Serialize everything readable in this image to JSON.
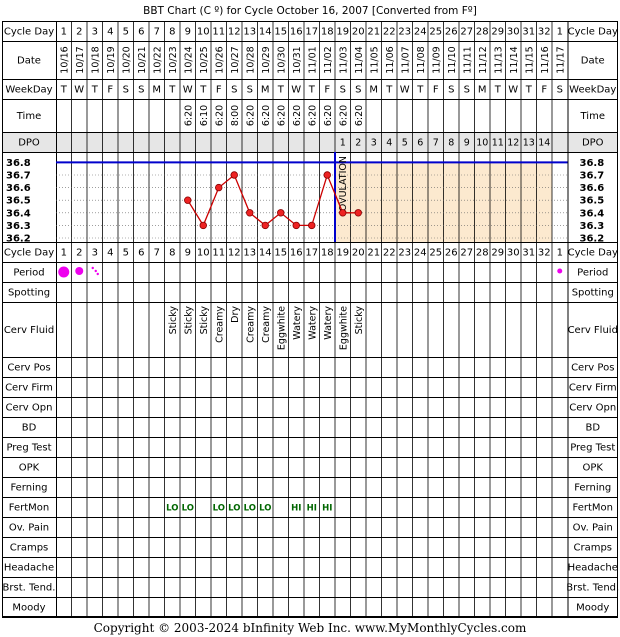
{
  "title": "BBT Chart (C º) for Cycle October 16, 2007  [Converted from Fº]",
  "row_labels": {
    "cycle_day": "Cycle Day",
    "date": "Date",
    "weekday": "WeekDay",
    "time": "Time",
    "dpo": "DPO",
    "period": "Period",
    "spotting": "Spotting",
    "cerv_fluid": "Cerv Fluid",
    "cerv_pos": "Cerv Pos",
    "cerv_firm": "Cerv Firm",
    "cerv_opn": "Cerv Opn",
    "bd": "BD",
    "preg_test": "Preg Test",
    "opk": "OPK",
    "ferning": "Ferning",
    "fertmon": "FertMon",
    "ov_pain": "Ov. Pain",
    "cramps": "Cramps",
    "headache": "Headache",
    "brst_tend": "Brst. Tend.",
    "moody": "Moody"
  },
  "columns": [
    {
      "day": "1",
      "date": "10/16",
      "weekday": "T",
      "time": "",
      "dpo": "",
      "fluid": "",
      "fertmon": ""
    },
    {
      "day": "2",
      "date": "10/17",
      "weekday": "W",
      "time": "",
      "dpo": "",
      "fluid": "",
      "fertmon": ""
    },
    {
      "day": "3",
      "date": "10/18",
      "weekday": "T",
      "time": "",
      "dpo": "",
      "fluid": "",
      "fertmon": ""
    },
    {
      "day": "4",
      "date": "10/19",
      "weekday": "F",
      "time": "",
      "dpo": "",
      "fluid": "",
      "fertmon": ""
    },
    {
      "day": "5",
      "date": "10/20",
      "weekday": "S",
      "time": "",
      "dpo": "",
      "fluid": "",
      "fertmon": ""
    },
    {
      "day": "6",
      "date": "10/21",
      "weekday": "S",
      "time": "",
      "dpo": "",
      "fluid": "",
      "fertmon": ""
    },
    {
      "day": "7",
      "date": "10/22",
      "weekday": "M",
      "time": "",
      "dpo": "",
      "fluid": "",
      "fertmon": ""
    },
    {
      "day": "8",
      "date": "10/23",
      "weekday": "T",
      "time": "",
      "dpo": "",
      "fluid": "Sticky",
      "fertmon": "LO"
    },
    {
      "day": "9",
      "date": "10/24",
      "weekday": "W",
      "time": "6:20",
      "dpo": "",
      "fluid": "Sticky",
      "fertmon": "LO"
    },
    {
      "day": "10",
      "date": "10/25",
      "weekday": "T",
      "time": "6:10",
      "dpo": "",
      "fluid": "Sticky",
      "fertmon": ""
    },
    {
      "day": "11",
      "date": "10/26",
      "weekday": "F",
      "time": "6:20",
      "dpo": "",
      "fluid": "Creamy",
      "fertmon": "LO"
    },
    {
      "day": "12",
      "date": "10/27",
      "weekday": "S",
      "time": "8:00",
      "dpo": "",
      "fluid": "Dry",
      "fertmon": "LO"
    },
    {
      "day": "13",
      "date": "10/28",
      "weekday": "S",
      "time": "6:20",
      "dpo": "",
      "fluid": "Creamy",
      "fertmon": "LO"
    },
    {
      "day": "14",
      "date": "10/29",
      "weekday": "M",
      "time": "6:20",
      "dpo": "",
      "fluid": "Creamy",
      "fertmon": "LO"
    },
    {
      "day": "15",
      "date": "10/30",
      "weekday": "T",
      "time": "6:20",
      "dpo": "",
      "fluid": "Eggwhite",
      "fertmon": ""
    },
    {
      "day": "16",
      "date": "10/31",
      "weekday": "W",
      "time": "6:20",
      "dpo": "",
      "fluid": "Watery",
      "fertmon": "HI"
    },
    {
      "day": "17",
      "date": "11/01",
      "weekday": "T",
      "time": "6:20",
      "dpo": "",
      "fluid": "Watery",
      "fertmon": "HI"
    },
    {
      "day": "18",
      "date": "11/02",
      "weekday": "F",
      "time": "6:20",
      "dpo": "",
      "fluid": "Watery",
      "fertmon": "HI"
    },
    {
      "day": "19",
      "date": "11/03",
      "weekday": "S",
      "time": "6:20",
      "dpo": "1",
      "fluid": "Eggwhite",
      "fertmon": ""
    },
    {
      "day": "20",
      "date": "11/04",
      "weekday": "S",
      "time": "6:20",
      "dpo": "2",
      "fluid": "Sticky",
      "fertmon": ""
    },
    {
      "day": "21",
      "date": "11/05",
      "weekday": "M",
      "time": "",
      "dpo": "3",
      "fluid": "",
      "fertmon": ""
    },
    {
      "day": "22",
      "date": "11/06",
      "weekday": "T",
      "time": "",
      "dpo": "4",
      "fluid": "",
      "fertmon": ""
    },
    {
      "day": "23",
      "date": "11/07",
      "weekday": "W",
      "time": "",
      "dpo": "5",
      "fluid": "",
      "fertmon": ""
    },
    {
      "day": "24",
      "date": "11/08",
      "weekday": "T",
      "time": "",
      "dpo": "6",
      "fluid": "",
      "fertmon": ""
    },
    {
      "day": "25",
      "date": "11/09",
      "weekday": "F",
      "time": "",
      "dpo": "7",
      "fluid": "",
      "fertmon": ""
    },
    {
      "day": "26",
      "date": "11/10",
      "weekday": "S",
      "time": "",
      "dpo": "8",
      "fluid": "",
      "fertmon": ""
    },
    {
      "day": "27",
      "date": "11/11",
      "weekday": "S",
      "time": "",
      "dpo": "9",
      "fluid": "",
      "fertmon": ""
    },
    {
      "day": "28",
      "date": "11/12",
      "weekday": "M",
      "time": "",
      "dpo": "10",
      "fluid": "",
      "fertmon": ""
    },
    {
      "day": "29",
      "date": "11/13",
      "weekday": "T",
      "time": "",
      "dpo": "11",
      "fluid": "",
      "fertmon": ""
    },
    {
      "day": "30",
      "date": "11/14",
      "weekday": "W",
      "time": "",
      "dpo": "12",
      "fluid": "",
      "fertmon": ""
    },
    {
      "day": "31",
      "date": "11/15",
      "weekday": "T",
      "time": "",
      "dpo": "13",
      "fluid": "",
      "fertmon": ""
    },
    {
      "day": "32",
      "date": "11/16",
      "weekday": "F",
      "time": "",
      "dpo": "14",
      "fluid": "",
      "fertmon": ""
    },
    {
      "day": "1",
      "date": "11/17",
      "weekday": "S",
      "time": "",
      "dpo": "",
      "fluid": "",
      "fertmon": ""
    }
  ],
  "chart_data": {
    "type": "line",
    "x": [
      9,
      10,
      11,
      12,
      13,
      14,
      15,
      16,
      17,
      18,
      19,
      20
    ],
    "y": [
      36.5,
      36.3,
      36.6,
      36.7,
      36.4,
      36.3,
      36.4,
      36.3,
      36.3,
      36.7,
      36.4,
      36.4
    ],
    "y_ticks": [
      "36.8",
      "36.7",
      "36.6",
      "36.5",
      "36.4",
      "36.3",
      "36.2"
    ],
    "ylim": [
      36.2,
      36.8
    ],
    "coverline": 36.8,
    "ovulation_day": 18,
    "ovulation_label": "OVULATION",
    "luteal_shading_from_day": 19,
    "luteal_shading_to_day": 32,
    "period": [
      {
        "day": 1,
        "flow": "heavy"
      },
      {
        "day": 2,
        "flow": "medium"
      },
      {
        "day": 3,
        "flow": "spotting"
      },
      {
        "day": 33,
        "flow": "light"
      }
    ],
    "line_color": "#cc0000",
    "point_color": "#ee2222",
    "coverline_color": "#0000cc",
    "ovulation_line_color": "#0000cc",
    "shading_color": "#fce9cf",
    "period_color": "#ee00ee",
    "fertmon_color": "#006600"
  },
  "footer": "Copyright © 2003-2024 bInfinity Web Inc.    www.MyMonthlyCycles.com"
}
